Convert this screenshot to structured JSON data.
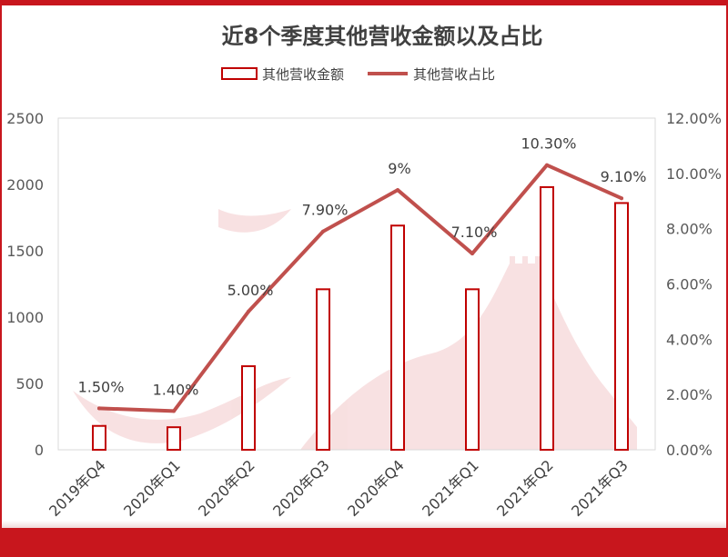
{
  "chart_data": {
    "type": "bar",
    "title": "近8个季度其他营收金额以及占比",
    "categories": [
      "2019年Q4",
      "2020年Q1",
      "2020年Q2",
      "2020年Q3",
      "2020年Q4",
      "2021年Q1",
      "2021年Q2",
      "2021年Q3"
    ],
    "series": [
      {
        "name": "其他营收金额",
        "type": "bar",
        "axis": "left",
        "values": [
          180,
          170,
          630,
          1210,
          1690,
          1210,
          1980,
          1860
        ],
        "color": "#c00000"
      },
      {
        "name": "其他营收占比",
        "type": "line",
        "axis": "right",
        "values": [
          1.5,
          1.4,
          5.0,
          7.9,
          9.4,
          7.1,
          10.3,
          9.1
        ],
        "labels": [
          "1.50%",
          "1.40%",
          "5.00%",
          "7.90%",
          "9%",
          "7.10%",
          "10.30%",
          "9.10%"
        ],
        "color": "#c0504d"
      }
    ],
    "y_left": {
      "range": [
        0,
        2500
      ],
      "ticks": [
        "0",
        "500",
        "1000",
        "1500",
        "2000",
        "2500"
      ]
    },
    "y_right": {
      "range": [
        0,
        12
      ],
      "ticks": [
        "0.00%",
        "2.00%",
        "4.00%",
        "6.00%",
        "8.00%",
        "10.00%",
        "12.00%"
      ]
    },
    "legend": "top",
    "grid": false
  }
}
